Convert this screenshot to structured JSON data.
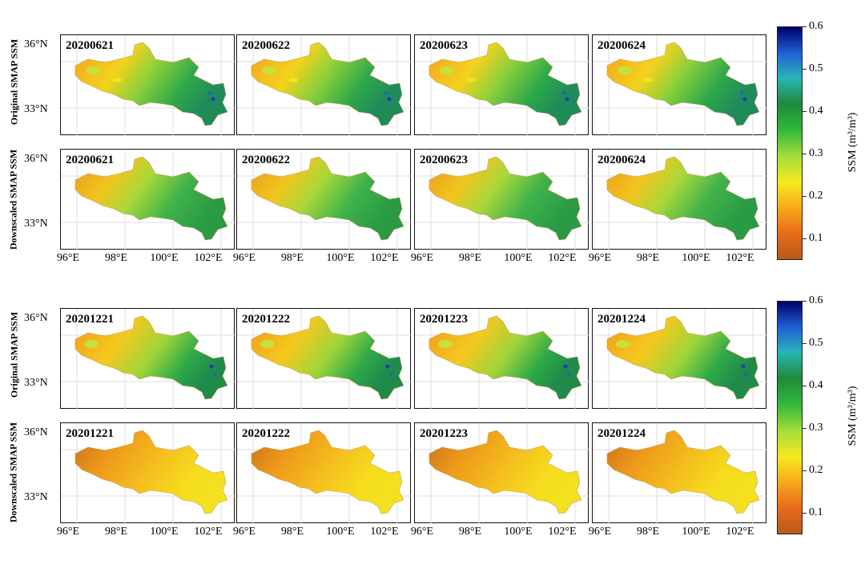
{
  "colorbar": {
    "title": "SSM (m³/m³)",
    "ticks": [
      "0.6",
      "0.5",
      "0.4",
      "0.3",
      "0.2",
      "0.1"
    ],
    "tick_values": [
      0.6,
      0.5,
      0.4,
      0.3,
      0.2,
      0.1
    ],
    "range": [
      0.05,
      0.6
    ],
    "colors": [
      "#00006a",
      "#1f5fd6",
      "#29b5b5",
      "#1f8a3a",
      "#2fb73a",
      "#a8dd3a",
      "#f6e81e",
      "#f7a81a",
      "#e86a1a",
      "#b85a1a"
    ]
  },
  "axes": {
    "y_ticks": [
      "36°N",
      "33°N"
    ],
    "x_ticks": [
      "96°E",
      "98°E",
      "100°E",
      "102°E"
    ]
  },
  "row_labels": {
    "original": "Original SMAP SSM",
    "downscaled": "Downscaled SMAP SSM"
  },
  "groups": [
    {
      "dates_original": [
        "20200621",
        "20200622",
        "20200623",
        "20200624"
      ],
      "dates_downscaled": [
        "20200621",
        "20200622",
        "20200623",
        "20200624"
      ]
    },
    {
      "dates_original": [
        "20201221",
        "20201222",
        "20201223",
        "20201224"
      ],
      "dates_downscaled": [
        "20201221",
        "20201222",
        "20201223",
        "20201224"
      ]
    }
  ]
}
